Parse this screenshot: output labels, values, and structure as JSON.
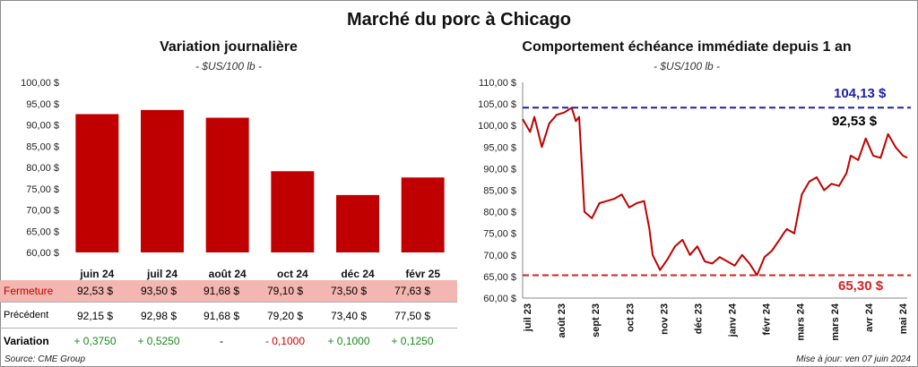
{
  "title": "Marché du porc à Chicago",
  "left": {
    "subtitle": "Variation  journalière",
    "unit": "- $US/100 lb -"
  },
  "right": {
    "subtitle": "Comportement  échéance immédiate depuis 1 an",
    "unit": "- $US/100 lb -",
    "max_label": "104,13 $",
    "last_label": "92,53 $",
    "min_label": "65,30 $"
  },
  "table": {
    "fermeture": {
      "label": "Fermeture",
      "values": [
        "92,53  $",
        "93,50  $",
        "91,68  $",
        "79,10  $",
        "73,50  $",
        "77,63  $"
      ]
    },
    "precedent": {
      "label": "Précédent",
      "values": [
        "92,15  $",
        "92,98  $",
        "91,68  $",
        "79,20  $",
        "73,40  $",
        "77,50  $"
      ]
    },
    "variation": {
      "label": "Variation",
      "values": [
        "+ 0,3750",
        "+ 0,5250",
        "-",
        "- 0,1000",
        "+ 0,1000",
        "+ 0,1250"
      ]
    }
  },
  "footer": {
    "source": "Source: CME Group",
    "updated": "Mise à jour: ven 07 juin 2024"
  },
  "colors": {
    "bar": "#c00000",
    "line": "#c00000",
    "max_line": "#1f1fa8",
    "min_line": "#d92020",
    "fermeture_bg": "#f4b6b0",
    "positive": "#1a8a1a",
    "negative": "#d00000"
  },
  "chart_data": [
    {
      "type": "bar",
      "title": "Variation  journalière",
      "categories": [
        "juin 24",
        "juil 24",
        "août 24",
        "oct 24",
        "déc 24",
        "févr 25"
      ],
      "values": [
        92.53,
        93.5,
        91.68,
        79.1,
        73.5,
        77.63
      ],
      "ylim": [
        60,
        100
      ],
      "yticks": [
        60,
        65,
        70,
        75,
        80,
        85,
        90,
        95,
        100
      ],
      "ytick_labels": [
        "60,00 $",
        "65,00 $",
        "70,00 $",
        "75,00 $",
        "80,00 $",
        "85,00 $",
        "90,00 $",
        "95,00 $",
        "100,00 $"
      ],
      "grid": false
    },
    {
      "type": "line",
      "title": "Comportement  échéance immédiate depuis 1 an",
      "x_ticks": [
        "juil 23",
        "août 23",
        "sept 23",
        "oct 23",
        "nov 23",
        "déc 23",
        "janv 24",
        "févr 24",
        "mars 24",
        "mars 24",
        "avr 24",
        "mai 24"
      ],
      "x": [
        "2023-06-12",
        "2023-06-19",
        "2023-06-23",
        "2023-06-30",
        "2023-07-07",
        "2023-07-14",
        "2023-07-21",
        "2023-07-28",
        "2023-08-01",
        "2023-08-04",
        "2023-08-09",
        "2023-08-16",
        "2023-08-23",
        "2023-08-30",
        "2023-09-06",
        "2023-09-13",
        "2023-09-20",
        "2023-09-27",
        "2023-10-04",
        "2023-10-09",
        "2023-10-12",
        "2023-10-19",
        "2023-10-26",
        "2023-11-02",
        "2023-11-09",
        "2023-11-16",
        "2023-11-23",
        "2023-11-30",
        "2023-12-07",
        "2023-12-14",
        "2023-12-21",
        "2023-12-28",
        "2024-01-04",
        "2024-01-11",
        "2024-01-18",
        "2024-01-25",
        "2024-02-01",
        "2024-02-08",
        "2024-02-12",
        "2024-02-15",
        "2024-02-22",
        "2024-02-29",
        "2024-03-07",
        "2024-03-14",
        "2024-03-21",
        "2024-03-28",
        "2024-04-04",
        "2024-04-11",
        "2024-04-15",
        "2024-04-22",
        "2024-04-29",
        "2024-05-06",
        "2024-05-13",
        "2024-05-20",
        "2024-05-27",
        "2024-06-03",
        "2024-06-07"
      ],
      "values": [
        101.5,
        98.5,
        102.0,
        95.0,
        100.5,
        102.5,
        103.0,
        104.13,
        101.0,
        102.0,
        80.0,
        78.5,
        82.0,
        82.5,
        83.0,
        84.0,
        81.0,
        82.0,
        82.5,
        76.0,
        70.0,
        66.5,
        69.0,
        72.0,
        73.5,
        70.0,
        72.0,
        68.5,
        68.0,
        69.5,
        68.5,
        67.5,
        70.0,
        68.0,
        65.3,
        69.5,
        71.0,
        73.5,
        75.0,
        76.0,
        75.0,
        84.0,
        87.0,
        88.0,
        85.0,
        86.5,
        86.0,
        89.0,
        93.0,
        92.0,
        97.0,
        93.0,
        92.5,
        98.0,
        95.0,
        93.0,
        92.53
      ],
      "ylim": [
        60,
        110
      ],
      "yticks": [
        60,
        65,
        70,
        75,
        80,
        85,
        90,
        95,
        100,
        105,
        110
      ],
      "ytick_labels": [
        "60,00 $",
        "65,00 $",
        "70,00 $",
        "75,00 $",
        "80,00 $",
        "85,00 $",
        "90,00 $",
        "95,00 $",
        "100,00 $",
        "105,00 $",
        "110,00 $"
      ],
      "max": 104.13,
      "min": 65.3,
      "last": 92.53,
      "grid": false
    }
  ]
}
